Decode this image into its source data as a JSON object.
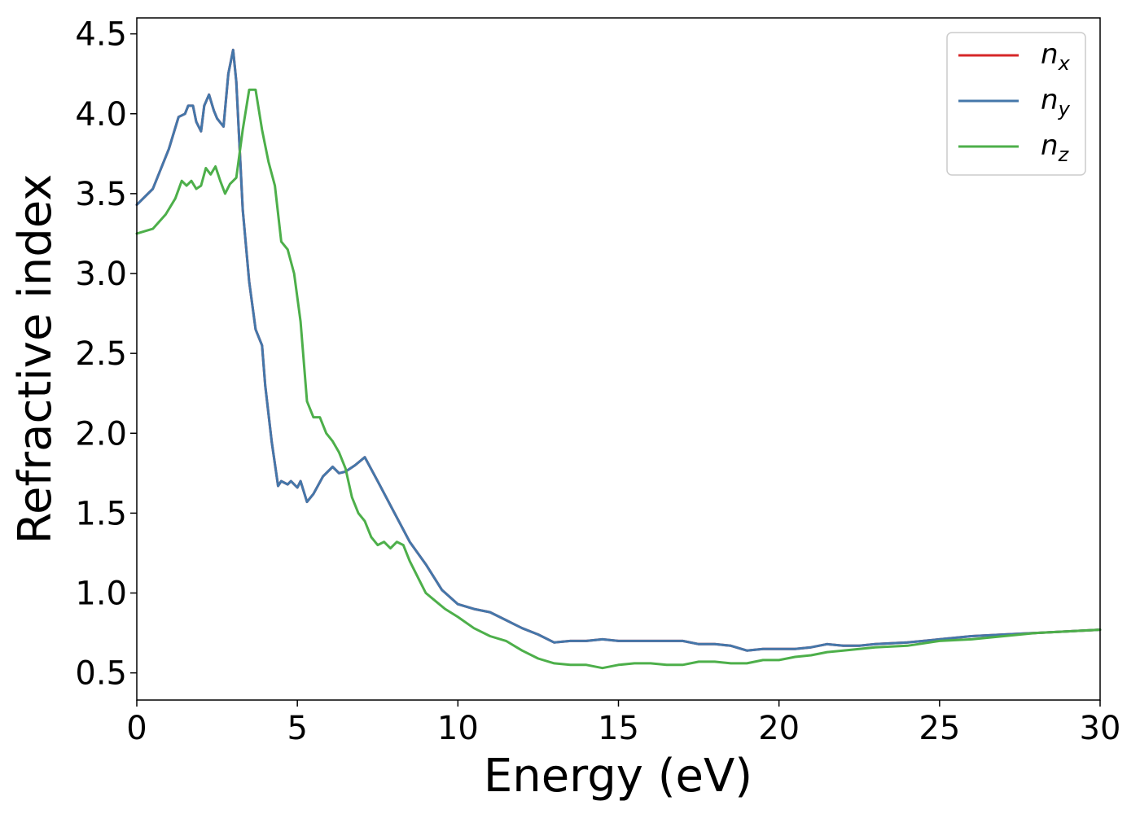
{
  "chart_data": {
    "type": "line",
    "xlabel": "Energy (eV)",
    "ylabel": "Refractive index",
    "xlim": [
      0,
      30
    ],
    "ylim": [
      0.33,
      4.6
    ],
    "xticks": [
      0,
      5,
      10,
      15,
      20,
      25,
      30
    ],
    "yticks": [
      0.5,
      1.0,
      1.5,
      2.0,
      2.5,
      3.0,
      3.5,
      4.0,
      4.5
    ],
    "ytick_labels": [
      "0.5",
      "1.0",
      "1.5",
      "2.0",
      "2.5",
      "3.0",
      "3.5",
      "4.0",
      "4.5"
    ],
    "grid": false,
    "legend": "top-right",
    "series": [
      {
        "name": "n",
        "subscript": "x",
        "color": "#d62728",
        "x": [
          0,
          0.5,
          1.0,
          1.3,
          1.5,
          1.6,
          1.75,
          1.85,
          2.0,
          2.1,
          2.25,
          2.4,
          2.5,
          2.7,
          2.85,
          3.0,
          3.1,
          3.3,
          3.5,
          3.7,
          3.9,
          4.0,
          4.2,
          4.4,
          4.5,
          4.7,
          4.8,
          5.0,
          5.1,
          5.3,
          5.5,
          5.8,
          6.1,
          6.3,
          6.5,
          6.8,
          7.1,
          7.5,
          8.0,
          8.5,
          9.0,
          9.5,
          10.0,
          10.5,
          11.0,
          11.5,
          12.0,
          12.5,
          13.0,
          13.5,
          14.0,
          14.5,
          15.0,
          15.5,
          16.0,
          16.5,
          17.0,
          17.5,
          18.0,
          18.5,
          19.0,
          19.5,
          20.0,
          20.5,
          21.0,
          21.5,
          22.0,
          22.5,
          23.0,
          24.0,
          25.0,
          26.0,
          27.0,
          28.0,
          29.0,
          30.0
        ],
        "values": [
          3.43,
          3.53,
          3.78,
          3.98,
          4.0,
          4.05,
          4.05,
          3.95,
          3.89,
          4.05,
          4.12,
          4.02,
          3.97,
          3.92,
          4.25,
          4.4,
          4.2,
          3.4,
          2.95,
          2.65,
          2.55,
          2.3,
          1.95,
          1.67,
          1.7,
          1.68,
          1.7,
          1.66,
          1.7,
          1.57,
          1.62,
          1.73,
          1.79,
          1.75,
          1.76,
          1.8,
          1.85,
          1.7,
          1.51,
          1.32,
          1.18,
          1.02,
          0.93,
          0.9,
          0.88,
          0.83,
          0.78,
          0.74,
          0.69,
          0.7,
          0.7,
          0.71,
          0.7,
          0.7,
          0.7,
          0.7,
          0.7,
          0.68,
          0.68,
          0.67,
          0.64,
          0.65,
          0.65,
          0.65,
          0.66,
          0.68,
          0.67,
          0.67,
          0.68,
          0.69,
          0.71,
          0.73,
          0.74,
          0.75,
          0.76,
          0.77
        ]
      },
      {
        "name": "n",
        "subscript": "y",
        "color": "#4477aa",
        "x": [
          0,
          0.5,
          1.0,
          1.3,
          1.5,
          1.6,
          1.75,
          1.85,
          2.0,
          2.1,
          2.25,
          2.4,
          2.5,
          2.7,
          2.85,
          3.0,
          3.1,
          3.3,
          3.5,
          3.7,
          3.9,
          4.0,
          4.2,
          4.4,
          4.5,
          4.7,
          4.8,
          5.0,
          5.1,
          5.3,
          5.5,
          5.8,
          6.1,
          6.3,
          6.5,
          6.8,
          7.1,
          7.5,
          8.0,
          8.5,
          9.0,
          9.5,
          10.0,
          10.5,
          11.0,
          11.5,
          12.0,
          12.5,
          13.0,
          13.5,
          14.0,
          14.5,
          15.0,
          15.5,
          16.0,
          16.5,
          17.0,
          17.5,
          18.0,
          18.5,
          19.0,
          19.5,
          20.0,
          20.5,
          21.0,
          21.5,
          22.0,
          22.5,
          23.0,
          24.0,
          25.0,
          26.0,
          27.0,
          28.0,
          29.0,
          30.0
        ],
        "values": [
          3.43,
          3.53,
          3.78,
          3.98,
          4.0,
          4.05,
          4.05,
          3.95,
          3.89,
          4.05,
          4.12,
          4.02,
          3.97,
          3.92,
          4.25,
          4.4,
          4.2,
          3.4,
          2.95,
          2.65,
          2.55,
          2.3,
          1.95,
          1.67,
          1.7,
          1.68,
          1.7,
          1.66,
          1.7,
          1.57,
          1.62,
          1.73,
          1.79,
          1.75,
          1.76,
          1.8,
          1.85,
          1.7,
          1.51,
          1.32,
          1.18,
          1.02,
          0.93,
          0.9,
          0.88,
          0.83,
          0.78,
          0.74,
          0.69,
          0.7,
          0.7,
          0.71,
          0.7,
          0.7,
          0.7,
          0.7,
          0.7,
          0.68,
          0.68,
          0.67,
          0.64,
          0.65,
          0.65,
          0.65,
          0.66,
          0.68,
          0.67,
          0.67,
          0.68,
          0.69,
          0.71,
          0.73,
          0.74,
          0.75,
          0.76,
          0.77
        ]
      },
      {
        "name": "n",
        "subscript": "z",
        "color": "#4daf4a",
        "x": [
          0,
          0.5,
          0.9,
          1.2,
          1.4,
          1.55,
          1.7,
          1.85,
          2.0,
          2.15,
          2.3,
          2.45,
          2.6,
          2.75,
          2.9,
          3.1,
          3.3,
          3.5,
          3.7,
          3.9,
          4.1,
          4.3,
          4.5,
          4.7,
          4.9,
          5.1,
          5.3,
          5.5,
          5.7,
          5.9,
          6.1,
          6.3,
          6.5,
          6.7,
          6.9,
          7.1,
          7.3,
          7.5,
          7.7,
          7.9,
          8.1,
          8.3,
          8.5,
          8.8,
          9.0,
          9.3,
          9.6,
          10.0,
          10.5,
          11.0,
          11.5,
          12.0,
          12.5,
          13.0,
          13.5,
          14.0,
          14.5,
          15.0,
          15.5,
          16.0,
          16.5,
          17.0,
          17.5,
          18.0,
          18.5,
          19.0,
          19.5,
          20.0,
          20.5,
          21.0,
          21.5,
          22.0,
          23.0,
          24.0,
          25.0,
          26.0,
          27.0,
          28.0,
          29.0,
          30.0
        ],
        "values": [
          3.25,
          3.28,
          3.37,
          3.47,
          3.58,
          3.55,
          3.58,
          3.53,
          3.55,
          3.66,
          3.62,
          3.67,
          3.58,
          3.5,
          3.56,
          3.6,
          3.9,
          4.15,
          4.15,
          3.9,
          3.7,
          3.55,
          3.2,
          3.15,
          3.0,
          2.7,
          2.2,
          2.1,
          2.1,
          2.0,
          1.95,
          1.88,
          1.78,
          1.6,
          1.5,
          1.45,
          1.35,
          1.3,
          1.32,
          1.28,
          1.32,
          1.3,
          1.2,
          1.08,
          1.0,
          0.95,
          0.9,
          0.85,
          0.78,
          0.73,
          0.7,
          0.64,
          0.59,
          0.56,
          0.55,
          0.55,
          0.53,
          0.55,
          0.56,
          0.56,
          0.55,
          0.55,
          0.57,
          0.57,
          0.56,
          0.56,
          0.58,
          0.58,
          0.6,
          0.61,
          0.63,
          0.64,
          0.66,
          0.67,
          0.7,
          0.71,
          0.73,
          0.75,
          0.76,
          0.77
        ]
      }
    ]
  }
}
